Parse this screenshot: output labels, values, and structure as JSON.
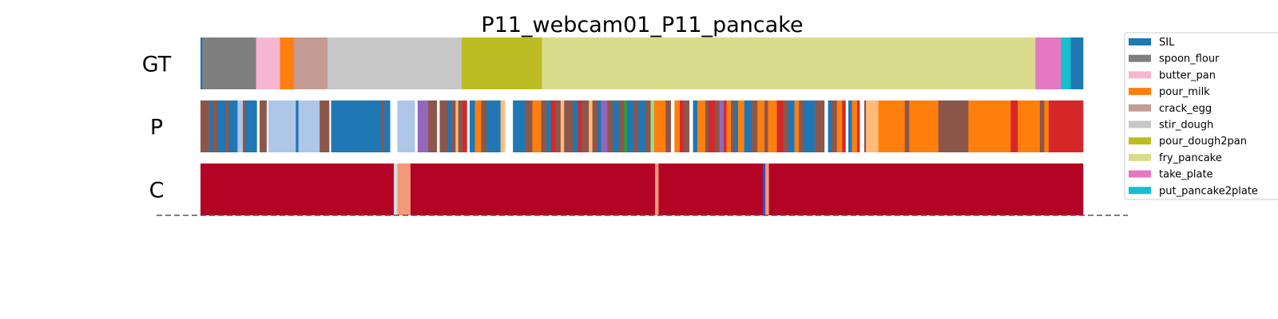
{
  "chart_data": {
    "type": "bar",
    "title": "P11_webcam01_P11_pancake",
    "x_range": [
      0,
      1000
    ],
    "rows": [
      {
        "label": "GT",
        "segments": [
          {
            "start": 0,
            "end": 2,
            "cls": "SIL"
          },
          {
            "start": 2,
            "end": 63,
            "cls": "spoon_flour"
          },
          {
            "start": 63,
            "end": 90,
            "cls": "butter_pan"
          },
          {
            "start": 90,
            "end": 106,
            "cls": "pour_milk"
          },
          {
            "start": 106,
            "end": 144,
            "cls": "crack_egg"
          },
          {
            "start": 144,
            "end": 296,
            "cls": "stir_dough"
          },
          {
            "start": 296,
            "end": 387,
            "cls": "pour_dough2pan"
          },
          {
            "start": 387,
            "end": 946,
            "cls": "fry_pancake"
          },
          {
            "start": 946,
            "end": 975,
            "cls": "take_plate"
          },
          {
            "start": 975,
            "end": 986,
            "cls": "put_pancake2plate"
          },
          {
            "start": 986,
            "end": 1000,
            "cls": "SIL"
          }
        ]
      },
      {
        "label": "P",
        "segments": [
          {
            "start": 0,
            "end": 10,
            "cls": "brown"
          },
          {
            "start": 10,
            "end": 14,
            "cls": "SIL"
          },
          {
            "start": 14,
            "end": 19,
            "cls": "brown"
          },
          {
            "start": 19,
            "end": 28,
            "cls": "SIL"
          },
          {
            "start": 28,
            "end": 32,
            "cls": "brown"
          },
          {
            "start": 32,
            "end": 42,
            "cls": "SIL"
          },
          {
            "start": 42,
            "end": 48,
            "cls": "lightblue"
          },
          {
            "start": 48,
            "end": 51,
            "cls": "brown"
          },
          {
            "start": 51,
            "end": 64,
            "cls": "SIL"
          },
          {
            "start": 64,
            "end": 67,
            "cls": "white"
          },
          {
            "start": 67,
            "end": 75,
            "cls": "brown"
          },
          {
            "start": 75,
            "end": 77,
            "cls": "white"
          },
          {
            "start": 77,
            "end": 108,
            "cls": "lightblue"
          },
          {
            "start": 108,
            "end": 111,
            "cls": "SIL"
          },
          {
            "start": 111,
            "end": 135,
            "cls": "lightblue"
          },
          {
            "start": 135,
            "end": 146,
            "cls": "brown"
          },
          {
            "start": 146,
            "end": 148,
            "cls": "white"
          },
          {
            "start": 148,
            "end": 205,
            "cls": "SIL"
          },
          {
            "start": 205,
            "end": 208,
            "cls": "brown"
          },
          {
            "start": 208,
            "end": 215,
            "cls": "SIL"
          },
          {
            "start": 215,
            "end": 223,
            "cls": "white"
          },
          {
            "start": 223,
            "end": 243,
            "cls": "lightblue"
          },
          {
            "start": 243,
            "end": 246,
            "cls": "white"
          },
          {
            "start": 246,
            "end": 258,
            "cls": "purple"
          },
          {
            "start": 258,
            "end": 268,
            "cls": "brown"
          },
          {
            "start": 268,
            "end": 271,
            "cls": "white"
          },
          {
            "start": 271,
            "end": 280,
            "cls": "brown"
          },
          {
            "start": 280,
            "end": 285,
            "cls": "SIL"
          },
          {
            "start": 285,
            "end": 289,
            "cls": "brown"
          },
          {
            "start": 289,
            "end": 292,
            "cls": "peach"
          },
          {
            "start": 292,
            "end": 297,
            "cls": "brown"
          },
          {
            "start": 297,
            "end": 302,
            "cls": "red"
          },
          {
            "start": 302,
            "end": 305,
            "cls": "white"
          },
          {
            "start": 305,
            "end": 311,
            "cls": "SIL"
          },
          {
            "start": 311,
            "end": 318,
            "cls": "pour_milk"
          },
          {
            "start": 318,
            "end": 324,
            "cls": "brown"
          },
          {
            "start": 324,
            "end": 340,
            "cls": "SIL"
          },
          {
            "start": 340,
            "end": 345,
            "cls": "peach"
          },
          {
            "start": 345,
            "end": 354,
            "cls": "white"
          },
          {
            "start": 354,
            "end": 368,
            "cls": "SIL"
          },
          {
            "start": 368,
            "end": 376,
            "cls": "brown"
          },
          {
            "start": 376,
            "end": 386,
            "cls": "pour_milk"
          },
          {
            "start": 386,
            "end": 392,
            "cls": "brown"
          },
          {
            "start": 392,
            "end": 397,
            "cls": "SIL"
          },
          {
            "start": 397,
            "end": 402,
            "cls": "red"
          },
          {
            "start": 402,
            "end": 408,
            "cls": "brown"
          },
          {
            "start": 408,
            "end": 412,
            "cls": "peach"
          },
          {
            "start": 412,
            "end": 422,
            "cls": "brown"
          },
          {
            "start": 422,
            "end": 428,
            "cls": "SIL"
          },
          {
            "start": 428,
            "end": 432,
            "cls": "red"
          },
          {
            "start": 432,
            "end": 440,
            "cls": "brown"
          },
          {
            "start": 440,
            "end": 444,
            "cls": "peach"
          },
          {
            "start": 444,
            "end": 450,
            "cls": "brown"
          },
          {
            "start": 450,
            "end": 454,
            "cls": "SIL"
          },
          {
            "start": 454,
            "end": 461,
            "cls": "purple"
          },
          {
            "start": 461,
            "end": 467,
            "cls": "brown"
          },
          {
            "start": 467,
            "end": 474,
            "cls": "SIL"
          },
          {
            "start": 474,
            "end": 480,
            "cls": "brown"
          },
          {
            "start": 480,
            "end": 483,
            "cls": "green"
          },
          {
            "start": 483,
            "end": 491,
            "cls": "SIL"
          },
          {
            "start": 491,
            "end": 496,
            "cls": "brown"
          },
          {
            "start": 496,
            "end": 504,
            "cls": "SIL"
          },
          {
            "start": 504,
            "end": 510,
            "cls": "brown"
          },
          {
            "start": 510,
            "end": 514,
            "cls": "lightgreen"
          },
          {
            "start": 514,
            "end": 527,
            "cls": "pour_milk"
          },
          {
            "start": 527,
            "end": 533,
            "cls": "brown"
          },
          {
            "start": 533,
            "end": 537,
            "cls": "white"
          },
          {
            "start": 537,
            "end": 543,
            "cls": "pour_milk"
          },
          {
            "start": 543,
            "end": 547,
            "cls": "red"
          },
          {
            "start": 547,
            "end": 554,
            "cls": "brown"
          },
          {
            "start": 554,
            "end": 558,
            "cls": "white"
          },
          {
            "start": 558,
            "end": 563,
            "cls": "SIL"
          },
          {
            "start": 563,
            "end": 572,
            "cls": "pour_milk"
          },
          {
            "start": 572,
            "end": 576,
            "cls": "brown"
          },
          {
            "start": 576,
            "end": 583,
            "cls": "red"
          },
          {
            "start": 583,
            "end": 588,
            "cls": "brown"
          },
          {
            "start": 588,
            "end": 593,
            "cls": "purple"
          },
          {
            "start": 593,
            "end": 596,
            "cls": "red"
          },
          {
            "start": 596,
            "end": 601,
            "cls": "pour_milk"
          },
          {
            "start": 601,
            "end": 605,
            "cls": "brown"
          },
          {
            "start": 605,
            "end": 609,
            "cls": "SIL"
          },
          {
            "start": 609,
            "end": 616,
            "cls": "pour_milk"
          },
          {
            "start": 616,
            "end": 624,
            "cls": "SIL"
          },
          {
            "start": 624,
            "end": 631,
            "cls": "brown"
          },
          {
            "start": 631,
            "end": 639,
            "cls": "pour_milk"
          },
          {
            "start": 639,
            "end": 643,
            "cls": "brown"
          },
          {
            "start": 643,
            "end": 653,
            "cls": "pour_milk"
          },
          {
            "start": 653,
            "end": 660,
            "cls": "red"
          },
          {
            "start": 660,
            "end": 666,
            "cls": "brown"
          },
          {
            "start": 666,
            "end": 673,
            "cls": "SIL"
          },
          {
            "start": 673,
            "end": 678,
            "cls": "pour_milk"
          },
          {
            "start": 678,
            "end": 683,
            "cls": "brown"
          },
          {
            "start": 683,
            "end": 696,
            "cls": "SIL"
          },
          {
            "start": 696,
            "end": 707,
            "cls": "brown"
          },
          {
            "start": 707,
            "end": 711,
            "cls": "white"
          },
          {
            "start": 711,
            "end": 715,
            "cls": "SIL"
          },
          {
            "start": 715,
            "end": 721,
            "cls": "brown"
          },
          {
            "start": 721,
            "end": 727,
            "cls": "pour_milk"
          },
          {
            "start": 727,
            "end": 731,
            "cls": "red"
          },
          {
            "start": 731,
            "end": 734,
            "cls": "white"
          },
          {
            "start": 734,
            "end": 738,
            "cls": "SIL"
          },
          {
            "start": 738,
            "end": 744,
            "cls": "pour_milk"
          },
          {
            "start": 744,
            "end": 747,
            "cls": "red"
          },
          {
            "start": 747,
            "end": 752,
            "cls": "white"
          },
          {
            "start": 752,
            "end": 754,
            "cls": "brown"
          },
          {
            "start": 754,
            "end": 768,
            "cls": "peach"
          },
          {
            "start": 768,
            "end": 798,
            "cls": "pour_milk"
          },
          {
            "start": 798,
            "end": 803,
            "cls": "brown"
          },
          {
            "start": 803,
            "end": 836,
            "cls": "pour_milk"
          },
          {
            "start": 836,
            "end": 870,
            "cls": "brown"
          },
          {
            "start": 870,
            "end": 918,
            "cls": "pour_milk"
          },
          {
            "start": 918,
            "end": 926,
            "cls": "red"
          },
          {
            "start": 926,
            "end": 951,
            "cls": "pour_milk"
          },
          {
            "start": 951,
            "end": 956,
            "cls": "brown"
          },
          {
            "start": 956,
            "end": 961,
            "cls": "pour_milk"
          },
          {
            "start": 961,
            "end": 1000,
            "cls": "red"
          }
        ]
      },
      {
        "label": "C",
        "segments": [
          {
            "start": 0,
            "end": 219,
            "cls": "conf_high"
          },
          {
            "start": 219,
            "end": 223,
            "cls": "conf_low"
          },
          {
            "start": 223,
            "end": 238,
            "cls": "conf_mid"
          },
          {
            "start": 238,
            "end": 515,
            "cls": "conf_high"
          },
          {
            "start": 515,
            "end": 519,
            "cls": "conf_mid"
          },
          {
            "start": 519,
            "end": 637,
            "cls": "conf_high"
          },
          {
            "start": 637,
            "end": 640,
            "cls": "conf_blue"
          },
          {
            "start": 640,
            "end": 644,
            "cls": "conf_mid"
          },
          {
            "start": 644,
            "end": 1000,
            "cls": "conf_high"
          }
        ]
      }
    ],
    "legend": {
      "placement": "right",
      "entries": [
        {
          "name": "SIL",
          "color": "#1f77b4"
        },
        {
          "name": "spoon_flour",
          "color": "#7f7f7f"
        },
        {
          "name": "butter_pan",
          "color": "#f7b6d2"
        },
        {
          "name": "pour_milk",
          "color": "#ff7f0e"
        },
        {
          "name": "crack_egg",
          "color": "#c49c94"
        },
        {
          "name": "stir_dough",
          "color": "#c7c7c7"
        },
        {
          "name": "pour_dough2pan",
          "color": "#bcbd22"
        },
        {
          "name": "fry_pancake",
          "color": "#dbdb8d"
        },
        {
          "name": "take_plate",
          "color": "#e377c2"
        },
        {
          "name": "put_pancake2plate",
          "color": "#17becf"
        }
      ]
    },
    "colors": {
      "SIL": "#1f77b4",
      "spoon_flour": "#7f7f7f",
      "butter_pan": "#f7b6d2",
      "pour_milk": "#ff7f0e",
      "crack_egg": "#c49c94",
      "stir_dough": "#c7c7c7",
      "pour_dough2pan": "#bcbd22",
      "fry_pancake": "#dbdb8d",
      "take_plate": "#e377c2",
      "put_pancake2plate": "#17becf",
      "brown": "#8c564b",
      "lightblue": "#aec7e8",
      "purple": "#9467bd",
      "red": "#d62728",
      "peach": "#ffbb78",
      "green": "#2ca02c",
      "lightgreen": "#98df8a",
      "white": "#ffffff",
      "conf_high": "#b40426",
      "conf_mid": "#f4987a",
      "conf_low": "#dddcdc",
      "conf_blue": "#3b4cc0"
    }
  }
}
